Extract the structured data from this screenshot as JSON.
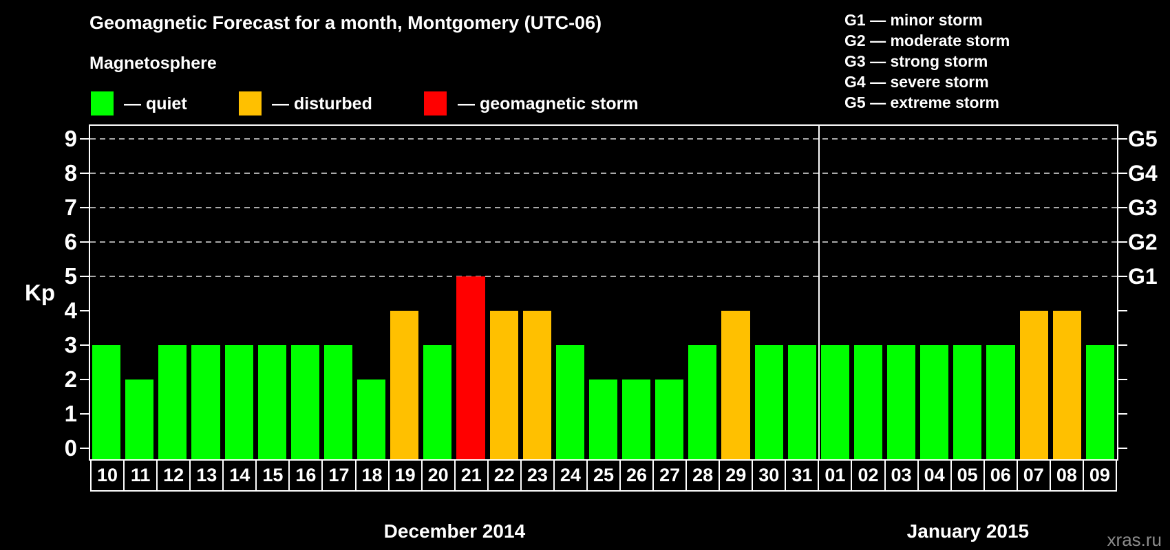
{
  "title": "Geomagnetic Forecast for a month, Montgomery (UTC-06)",
  "legend": {
    "heading": "Magnetosphere",
    "items": [
      {
        "status": "quiet",
        "label": "— quiet",
        "color": "#00ff00"
      },
      {
        "status": "disturbed",
        "label": "— disturbed",
        "color": "#ffc000"
      },
      {
        "status": "storm",
        "label": "— geomagnetic storm",
        "color": "#ff0000"
      }
    ]
  },
  "g_legend": {
    "lines": [
      "G1 — minor storm",
      "G2 — moderate storm",
      "G3 — strong storm",
      "G4 — severe storm",
      "G5 — extreme storm"
    ]
  },
  "watermark": "xras.ru",
  "chart_data": {
    "type": "bar",
    "ylabel": "Kp",
    "ylim": [
      0,
      9
    ],
    "y_ticks": [
      0,
      1,
      2,
      3,
      4,
      5,
      6,
      7,
      8,
      9
    ],
    "gridlines_at": [
      5,
      6,
      7,
      8,
      9
    ],
    "grid": "dashed horizontal at storm levels only",
    "right_axis_labels": [
      {
        "kp": 5,
        "label": "G1"
      },
      {
        "kp": 6,
        "label": "G2"
      },
      {
        "kp": 7,
        "label": "G3"
      },
      {
        "kp": 8,
        "label": "G4"
      },
      {
        "kp": 9,
        "label": "G5"
      }
    ],
    "months": [
      {
        "label": "December 2014",
        "days": 22
      },
      {
        "label": "January 2015",
        "days": 9
      }
    ],
    "categories": [
      "10",
      "11",
      "12",
      "13",
      "14",
      "15",
      "16",
      "17",
      "18",
      "19",
      "20",
      "21",
      "22",
      "23",
      "24",
      "25",
      "26",
      "27",
      "28",
      "29",
      "30",
      "31",
      "01",
      "02",
      "03",
      "04",
      "05",
      "06",
      "07",
      "08",
      "09"
    ],
    "values": [
      3,
      2,
      3,
      3,
      3,
      3,
      3,
      3,
      2,
      4,
      3,
      5,
      4,
      4,
      3,
      2,
      2,
      2,
      3,
      4,
      3,
      3,
      3,
      3,
      3,
      3,
      3,
      3,
      4,
      4,
      3
    ],
    "statuses": [
      "quiet",
      "quiet",
      "quiet",
      "quiet",
      "quiet",
      "quiet",
      "quiet",
      "quiet",
      "quiet",
      "disturbed",
      "quiet",
      "storm",
      "disturbed",
      "disturbed",
      "quiet",
      "quiet",
      "quiet",
      "quiet",
      "quiet",
      "disturbed",
      "quiet",
      "quiet",
      "quiet",
      "quiet",
      "quiet",
      "quiet",
      "quiet",
      "quiet",
      "disturbed",
      "disturbed",
      "quiet"
    ],
    "colors": {
      "quiet": "#00ff00",
      "disturbed": "#ffc000",
      "storm": "#ff0000"
    }
  }
}
